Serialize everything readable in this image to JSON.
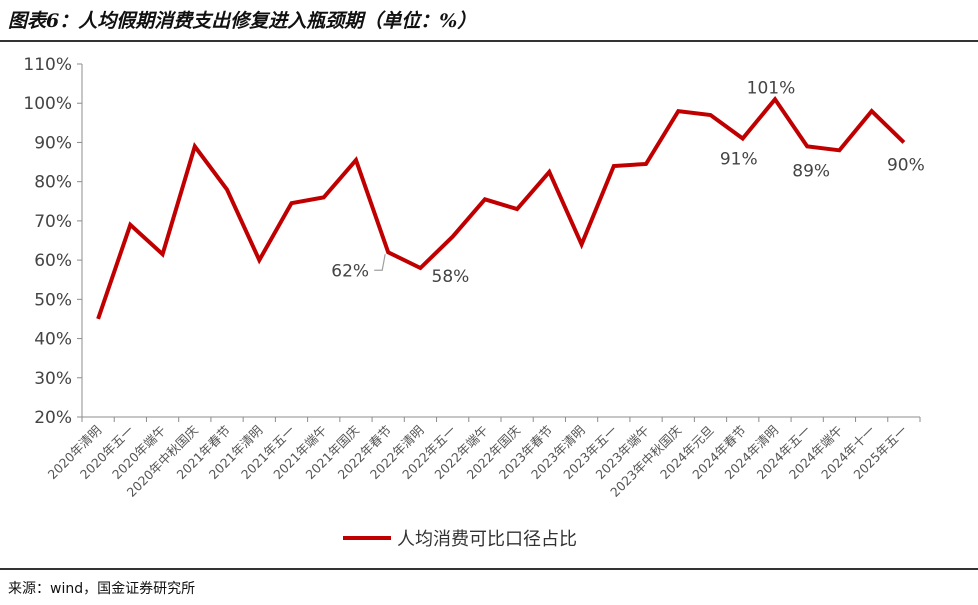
{
  "header": {
    "title": "图表6：人均假期消费支出修复进入瓶颈期（单位：%）"
  },
  "footer": {
    "source": "来源：wind，国金证券研究所"
  },
  "chart_data": {
    "type": "line",
    "title": "图表6：人均假期消费支出修复进入瓶颈期（单位：%）",
    "xlabel": "",
    "ylabel": "",
    "ylim": [
      20,
      110
    ],
    "yticks": [
      20,
      30,
      40,
      50,
      60,
      70,
      80,
      90,
      100,
      110
    ],
    "ytick_labels": [
      "20%",
      "30%",
      "40%",
      "50%",
      "60%",
      "70%",
      "80%",
      "90%",
      "100%",
      "110%"
    ],
    "grid": false,
    "legend_position": "bottom-center",
    "categories": [
      "2020年清明",
      "2020年五一",
      "2020年端午",
      "2020年中秋国庆",
      "2021年春节",
      "2021年清明",
      "2021年五一",
      "2021年端午",
      "2021年国庆",
      "2022年春节",
      "2022年清明",
      "2022年五一",
      "2022年端午",
      "2022年国庆",
      "2023年春节",
      "2023年清明",
      "2023年五一",
      "2023年端午",
      "2023年中秋国庆",
      "2024年元旦",
      "2024年春节",
      "2024年清明",
      "2024年五一",
      "2024年端午",
      "2024年十一",
      "2025年五一"
    ],
    "series": [
      {
        "name": "人均消费可比口径占比",
        "color": "#c00000",
        "values": [
          45,
          69,
          61.5,
          89,
          78,
          60,
          74.5,
          76,
          85.5,
          62,
          58,
          66,
          75.5,
          73,
          82.5,
          64,
          84,
          84.5,
          98,
          97,
          91,
          101,
          89,
          88,
          98,
          90
        ]
      }
    ],
    "data_labels": [
      {
        "index": 9,
        "text": "62%"
      },
      {
        "index": 10,
        "text": "58%"
      },
      {
        "index": 20,
        "text": "91%"
      },
      {
        "index": 21,
        "text": "101%"
      },
      {
        "index": 22,
        "text": "89%"
      },
      {
        "index": 25,
        "text": "90%"
      }
    ]
  }
}
